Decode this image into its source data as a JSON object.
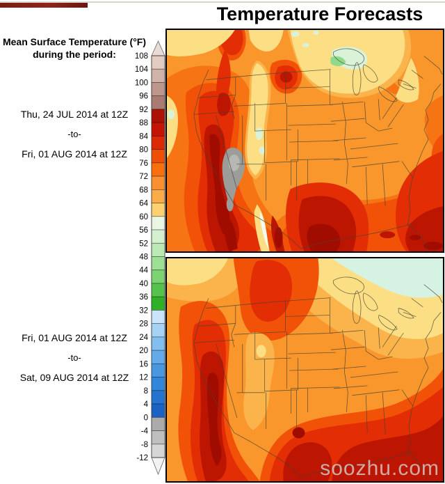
{
  "title": "Temperature Forecasts",
  "watermark": "soozhu.com",
  "legend": {
    "header_line1": "Mean Surface Temperature (°F)",
    "header_line2": "during the period:",
    "unit": "°F"
  },
  "panels": [
    {
      "id": "week-1",
      "period": {
        "start": "Thu, 24 JUL 2014 at 12Z",
        "separator": "-to-",
        "end": "Fri, 01 AUG 2014 at 12Z"
      }
    },
    {
      "id": "week-2",
      "period": {
        "start": "Fri, 01 AUG 2014 at 12Z",
        "separator": "-to-",
        "end": "Sat, 09 AUG 2014 at 12Z"
      }
    }
  ],
  "scale": {
    "tick_values": [
      108,
      104,
      100,
      96,
      92,
      88,
      84,
      80,
      76,
      72,
      68,
      64,
      60,
      56,
      52,
      48,
      44,
      40,
      36,
      32,
      28,
      24,
      20,
      16,
      12,
      8,
      4,
      0,
      -4,
      -8,
      -12
    ],
    "segment_colors": [
      "#e3cdc3",
      "#d1b2a8",
      "#bd968c",
      "#a87c72",
      "#ad1005",
      "#c41403",
      "#dd2a06",
      "#ef4e07",
      "#f8700d",
      "#fa9130",
      "#fcab49",
      "#fdd171",
      "#e8f6e3",
      "#d4f0cf",
      "#bce8b4",
      "#9edf96",
      "#7bd371",
      "#55c34b",
      "#2fb027",
      "#c9e4f8",
      "#a6d2f3",
      "#82beee",
      "#62abe8",
      "#4798e1",
      "#3186d9",
      "#2374ce",
      "#1b63c3",
      "#ababab",
      "#bfbfbf",
      "#d6d6d6"
    ],
    "above_max_color": "#eadcd4",
    "below_min_color": "#f2f2f2"
  },
  "map_palette": {
    "pale_yellow": "#fcdf85",
    "pale_green": "#d9f2d8",
    "green": "#8fd98a",
    "pale_cyan": "#d5f2e3",
    "light_orange": "#fbb44c",
    "orange": "#f9962c",
    "deep_orange": "#f67414",
    "orange_red": "#f25207",
    "red": "#e22d05",
    "dark_red": "#bc1502",
    "maroon": "#a00d00",
    "hot_gray": "#9c9d99",
    "hot_gray_core": "#b7b8b4"
  },
  "chart_data": {
    "type": "heatmap",
    "title": "Temperature Forecasts",
    "legend_title": "Mean Surface Temperature (°F) during the period:",
    "colorbar_ticks": [
      108,
      104,
      100,
      96,
      92,
      88,
      84,
      80,
      76,
      72,
      68,
      64,
      60,
      56,
      52,
      48,
      44,
      40,
      36,
      32,
      28,
      24,
      20,
      16,
      12,
      8,
      4,
      0,
      -4,
      -8,
      -12
    ],
    "panels": [
      "Thu, 24 JUL 2014 at 12Z -to- Fri, 01 AUG 2014 at 12Z",
      "Fri, 01 AUG 2014 at 12Z -to- Sat, 09 AUG 2014 at 12Z"
    ]
  }
}
